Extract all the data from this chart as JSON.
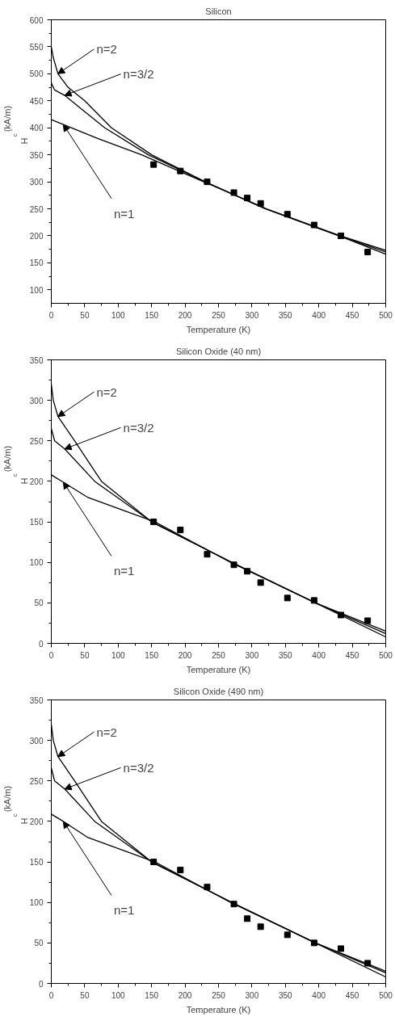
{
  "chart_data": [
    {
      "type": "line",
      "title": "Silicon",
      "xlabel": "Temperature (K)",
      "ylabel": "H$_{c}$(kA/m)",
      "xlim": [
        0,
        500
      ],
      "ylim": [
        75,
        600
      ],
      "xticks": [
        0,
        50,
        100,
        150,
        200,
        250,
        300,
        350,
        400,
        450,
        500
      ],
      "yticks": [
        100,
        150,
        200,
        250,
        300,
        350,
        400,
        450,
        500,
        550,
        600
      ],
      "grid": false,
      "annotations": [
        {
          "text": "n=2",
          "x": 10,
          "y": 500
        },
        {
          "text": "n=3/2",
          "x": 20,
          "y": 460
        },
        {
          "text": "n=1",
          "x": 18,
          "y": 406
        }
      ],
      "series": [
        {
          "color": "#000000",
          "x": [
            0,
            3,
            10,
            25,
            50,
            90,
            150,
            230,
            320,
            430,
            500
          ],
          "values": [
            550,
            530,
            500,
            475,
            450,
            400,
            350,
            300,
            250,
            200,
            170
          ]
        },
        {
          "color": "#000000",
          "x": [
            0,
            5,
            20,
            50,
            80,
            145,
            230,
            320,
            430,
            500
          ],
          "values": [
            483,
            470,
            460,
            430,
            400,
            350,
            300,
            250,
            200,
            166
          ]
        },
        {
          "color": "#000000",
          "x": [
            0,
            18,
            70,
            135,
            228,
            322,
            432,
            500
          ],
          "values": [
            415,
            406,
            380,
            350,
            300,
            250,
            200,
            173
          ]
        },
        {
          "type": "scatter",
          "marker": "square",
          "color": "#000000",
          "x": [
            153,
            193,
            233,
            273,
            293,
            313,
            353,
            393,
            433,
            473
          ],
          "values": [
            332,
            320,
            300,
            280,
            270,
            260,
            240,
            220,
            200,
            170
          ]
        }
      ]
    },
    {
      "type": "line",
      "title": "Silicon Oxide (40 nm)",
      "xlabel": "Temperature (K)",
      "ylabel": "H$_{c}$(kA/m)",
      "xlim": [
        0,
        500
      ],
      "ylim": [
        0,
        350
      ],
      "xticks": [
        0,
        50,
        100,
        150,
        200,
        250,
        300,
        350,
        400,
        450,
        500
      ],
      "yticks": [
        0,
        50,
        100,
        150,
        200,
        250,
        300,
        350
      ],
      "grid": false,
      "annotations": [
        {
          "text": "n=2",
          "x": 10,
          "y": 280
        },
        {
          "text": "n=3/2",
          "x": 20,
          "y": 240
        },
        {
          "text": "n=1",
          "x": 18,
          "y": 199
        }
      ],
      "series": [
        {
          "color": "#000000",
          "x": [
            0,
            3,
            10,
            35,
            75,
            150,
            270,
            395,
            500
          ],
          "values": [
            320,
            300,
            280,
            250,
            200,
            150,
            100,
            50,
            12
          ]
        },
        {
          "color": "#000000",
          "x": [
            0,
            5,
            20,
            65,
            150,
            270,
            395,
            500
          ],
          "values": [
            265,
            250,
            240,
            200,
            150,
            100,
            50,
            8
          ]
        },
        {
          "color": "#000000",
          "x": [
            0,
            18,
            55,
            155,
            268,
            395,
            500
          ],
          "values": [
            208,
            199,
            180,
            150,
            100,
            50,
            15
          ]
        },
        {
          "type": "scatter",
          "marker": "square",
          "color": "#000000",
          "x": [
            153,
            193,
            233,
            273,
            293,
            313,
            353,
            393,
            433,
            473
          ],
          "values": [
            150,
            140,
            110,
            97,
            89,
            75,
            56,
            53,
            35,
            28
          ]
        }
      ]
    },
    {
      "type": "line",
      "title": "Silicon Oxide (490 nm)",
      "xlabel": "Temperature (K)",
      "ylabel": "H$_{c}$(kA/m)",
      "xlim": [
        0,
        500
      ],
      "ylim": [
        0,
        350
      ],
      "xticks": [
        0,
        50,
        100,
        150,
        200,
        250,
        300,
        350,
        400,
        450,
        500
      ],
      "yticks": [
        0,
        50,
        100,
        150,
        200,
        250,
        300,
        350
      ],
      "grid": false,
      "annotations": [
        {
          "text": "n=2",
          "x": 10,
          "y": 280
        },
        {
          "text": "n=3/2",
          "x": 20,
          "y": 240
        },
        {
          "text": "n=1",
          "x": 18,
          "y": 200
        }
      ],
      "series": [
        {
          "color": "#000000",
          "x": [
            0,
            3,
            10,
            35,
            75,
            150,
            270,
            395,
            500
          ],
          "values": [
            320,
            300,
            280,
            250,
            200,
            150,
            100,
            50,
            13
          ]
        },
        {
          "color": "#000000",
          "x": [
            0,
            5,
            20,
            65,
            150,
            270,
            395,
            500
          ],
          "values": [
            266,
            250,
            240,
            200,
            150,
            100,
            50,
            8
          ]
        },
        {
          "color": "#000000",
          "x": [
            0,
            18,
            55,
            155,
            268,
            395,
            500
          ],
          "values": [
            209,
            200,
            180,
            150,
            100,
            50,
            15
          ]
        },
        {
          "type": "scatter",
          "marker": "square",
          "color": "#000000",
          "x": [
            153,
            193,
            233,
            273,
            293,
            313,
            353,
            393,
            433,
            473
          ],
          "values": [
            150,
            140,
            119,
            98,
            80,
            70,
            60,
            50,
            43,
            25
          ]
        }
      ]
    }
  ]
}
